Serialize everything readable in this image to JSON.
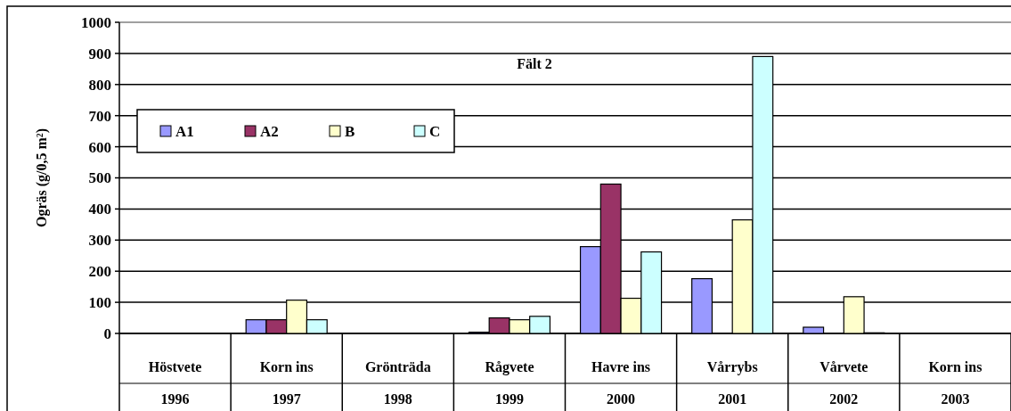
{
  "chart_data": {
    "type": "bar",
    "title": "Fält 2",
    "ylabel": "Ogräs (g/0,5 m²)",
    "categories": [
      "Höstvete\n1996",
      "Korn ins\n1997",
      "Grönträda\n1998",
      "Rågvete\n1999",
      "Havre ins\n2000",
      "Vårrybs\n2001",
      "Vårvete\n2002",
      "Korn ins\n2003"
    ],
    "series": [
      {
        "name": "A1",
        "color": "#9999ff",
        "values": [
          0,
          44,
          0,
          4,
          279,
          176,
          20,
          0
        ]
      },
      {
        "name": "A2",
        "color": "#993366",
        "values": [
          0,
          44,
          0,
          50,
          480,
          0,
          0,
          0
        ]
      },
      {
        "name": "B",
        "color": "#ffffcc",
        "values": [
          0,
          107,
          0,
          44,
          113,
          365,
          118,
          0
        ]
      },
      {
        "name": "C",
        "color": "#ccffff",
        "values": [
          0,
          44,
          0,
          55,
          262,
          890,
          2,
          0
        ]
      }
    ],
    "ylim": [
      0,
      1000
    ],
    "yticks": [
      0,
      100,
      200,
      300,
      400,
      500,
      600,
      700,
      800,
      900,
      1000
    ],
    "grid": "y",
    "legend": "top left"
  }
}
